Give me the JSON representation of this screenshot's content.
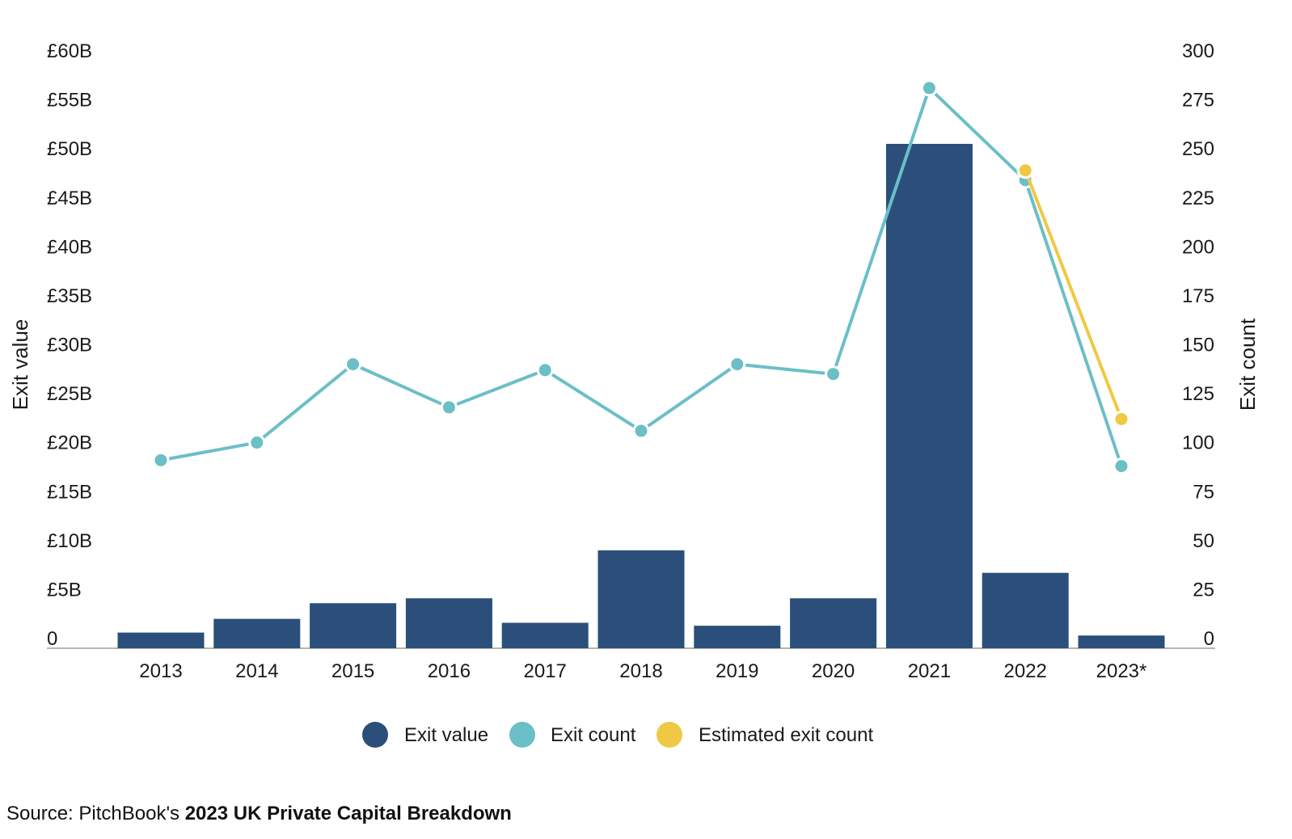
{
  "chart_data": {
    "type": "bar",
    "categories": [
      "2013",
      "2014",
      "2015",
      "2016",
      "2017",
      "2018",
      "2019",
      "2020",
      "2021",
      "2022",
      "2023*"
    ],
    "series": [
      {
        "name": "Exit value",
        "type": "bar",
        "axis": "left",
        "color": "#2b4f7a",
        "values": [
          1.6,
          3.0,
          4.6,
          5.1,
          2.6,
          10.0,
          2.3,
          5.1,
          51.5,
          7.7,
          1.3
        ]
      },
      {
        "name": "Exit count",
        "type": "line",
        "axis": "right",
        "color": "#6bbfc7",
        "values": [
          96,
          105,
          145,
          123,
          142,
          111,
          145,
          140,
          286,
          239,
          93
        ]
      },
      {
        "name": "Estimated exit count",
        "type": "line",
        "axis": "right",
        "color": "#efc943",
        "values": [
          null,
          null,
          null,
          null,
          null,
          null,
          null,
          null,
          null,
          244,
          117
        ]
      }
    ],
    "ylabel": "Exit value",
    "ylabel_right": "Exit count",
    "ylim": [
      0,
      60
    ],
    "ylim_right": [
      0,
      300
    ],
    "y_ticks": [
      "0",
      "£5B",
      "£10B",
      "£15B",
      "£20B",
      "£25B",
      "£30B",
      "£35B",
      "£40B",
      "£45B",
      "£50B",
      "£55B",
      "£60B"
    ],
    "y_ticks_right": [
      "0",
      "25",
      "50",
      "75",
      "100",
      "125",
      "150",
      "175",
      "200",
      "225",
      "250",
      "275",
      "300"
    ],
    "grid": false,
    "legend": "bottom"
  },
  "source": {
    "prefix": "Source: PitchBook's ",
    "title": "2023 UK Private Capital Breakdown"
  }
}
